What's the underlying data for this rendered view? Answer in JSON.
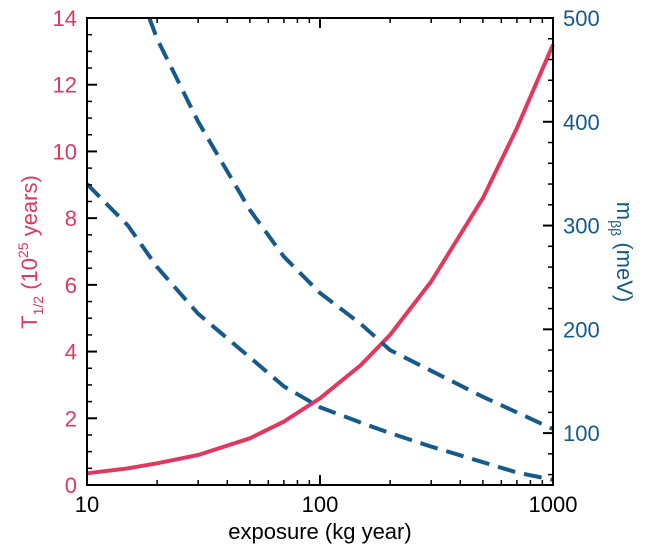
{
  "colors": {
    "left_axis": "#e0385f",
    "right_axis": "#155a8a",
    "frame": "#000000"
  },
  "chart_data": {
    "type": "line",
    "x_scale": "log",
    "xlim": [
      10,
      1000
    ],
    "ylim_left": [
      0,
      14
    ],
    "ylim_right": [
      50,
      500
    ],
    "grid": false,
    "legend": "none",
    "xlabel": "exposure (kg year)",
    "ylabel_left": {
      "base": "T",
      "sub": "1/2",
      "mid": " (10",
      "sup": "25",
      "end": " years)"
    },
    "ylabel_right": {
      "base": "m",
      "sub": "ββ",
      "end": " (meV)"
    },
    "x_ticks": [
      {
        "v": 10,
        "label": "10"
      },
      {
        "v": 100,
        "label": "100"
      },
      {
        "v": 1000,
        "label": "1000"
      }
    ],
    "y_left_ticks": [
      {
        "v": 0,
        "label": "0"
      },
      {
        "v": 2,
        "label": "2"
      },
      {
        "v": 4,
        "label": "4"
      },
      {
        "v": 6,
        "label": "6"
      },
      {
        "v": 8,
        "label": "8"
      },
      {
        "v": 10,
        "label": "10"
      },
      {
        "v": 12,
        "label": "12"
      },
      {
        "v": 14,
        "label": "14"
      }
    ],
    "y_right_ticks": [
      {
        "v": 100,
        "label": "100"
      },
      {
        "v": 200,
        "label": "200"
      },
      {
        "v": 300,
        "label": "300"
      },
      {
        "v": 400,
        "label": "400"
      },
      {
        "v": 500,
        "label": "500"
      }
    ],
    "series": [
      {
        "axis": "left",
        "style": "solid",
        "x": [
          10,
          15,
          20,
          30,
          50,
          70,
          100,
          150,
          200,
          300,
          500,
          700,
          1000
        ],
        "y": [
          0.35,
          0.5,
          0.65,
          0.9,
          1.4,
          1.9,
          2.6,
          3.6,
          4.5,
          6.1,
          8.6,
          10.7,
          13.2
        ]
      },
      {
        "axis": "right",
        "style": "dashed",
        "x": [
          18.5,
          20,
          30,
          50,
          70,
          100,
          150,
          200,
          300,
          500,
          700,
          1000
        ],
        "y": [
          500,
          480,
          400,
          315,
          270,
          235,
          205,
          180,
          160,
          135,
          120,
          104
        ]
      },
      {
        "axis": "right",
        "style": "dashed",
        "x": [
          10,
          15,
          20,
          30,
          50,
          70,
          100,
          150,
          200,
          300,
          500,
          700,
          1000
        ],
        "y": [
          340,
          300,
          260,
          215,
          173,
          145,
          125,
          110,
          100,
          87,
          72,
          62,
          55
        ]
      }
    ]
  }
}
